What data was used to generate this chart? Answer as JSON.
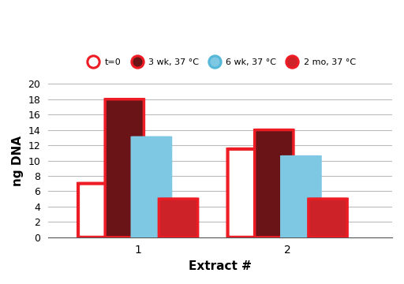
{
  "groups": [
    1,
    2
  ],
  "group_centers": [
    0.3,
    0.8
  ],
  "series": [
    {
      "label": "t=0",
      "values": [
        7.0,
        11.5
      ],
      "facecolor": "white",
      "edgecolor": "#ee1c25",
      "linewidth": 3.0,
      "zorder": 2
    },
    {
      "label": "3 wk, 37 °C",
      "values": [
        18.0,
        14.0
      ],
      "facecolor": "#6b1418",
      "edgecolor": "#ee1c25",
      "linewidth": 2.5,
      "zorder": 3
    },
    {
      "label": "6 wk, 37 °C",
      "values": [
        13.0,
        10.5
      ],
      "facecolor": "#7ec8e3",
      "edgecolor": "#7ec8e3",
      "linewidth": 2.5,
      "zorder": 4
    },
    {
      "label": "2 mo, 37 °C",
      "values": [
        5.0,
        5.0
      ],
      "facecolor": "#cc2228",
      "edgecolor": "#ee1c25",
      "linewidth": 2.5,
      "zorder": 5
    }
  ],
  "ylim": [
    0,
    20
  ],
  "yticks": [
    0,
    2,
    4,
    6,
    8,
    10,
    12,
    14,
    16,
    18,
    20
  ],
  "xlabel": "Extract #",
  "ylabel": "ng DNA",
  "bar_width": 0.13,
  "bar_spacing": 0.09,
  "legend_markers": [
    {
      "marker_face": "white",
      "marker_edge": "#ee1c25"
    },
    {
      "marker_face": "#6b1418",
      "marker_edge": "#ee1c25"
    },
    {
      "marker_face": "#7ec8e3",
      "marker_edge": "#55b8d8"
    },
    {
      "marker_face": "#cc2228",
      "marker_edge": "#ee1c25"
    }
  ],
  "background_color": "white",
  "grid_color": "#bbbbbb",
  "xlim": [
    0.0,
    1.15
  ]
}
